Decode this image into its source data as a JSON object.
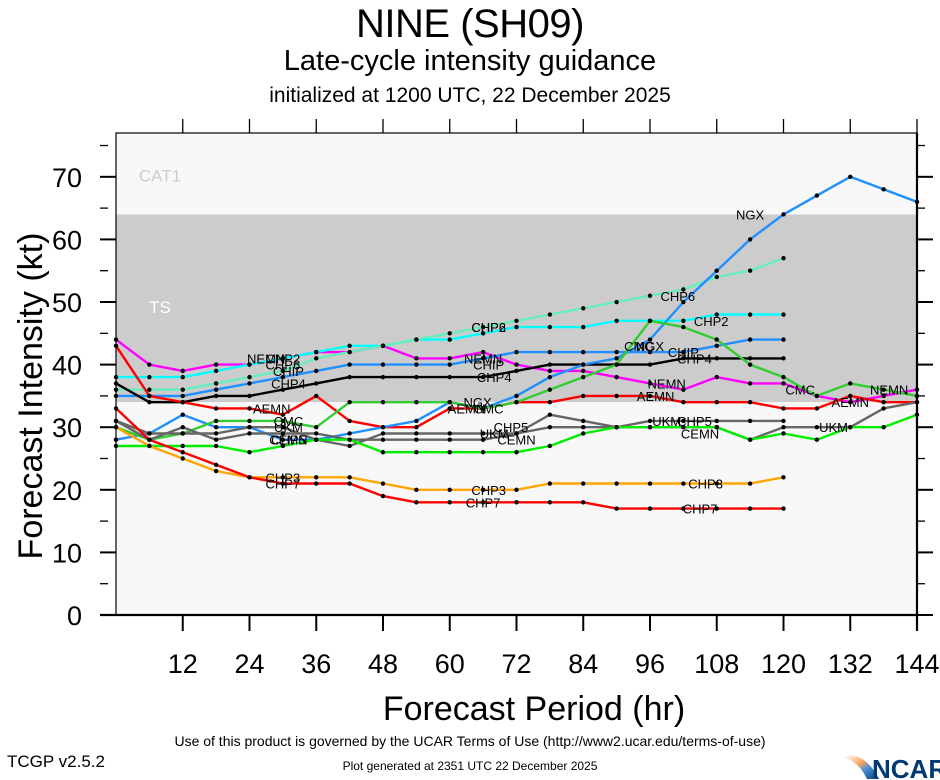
{
  "header": {
    "title": "NINE (SH09)",
    "subtitle": "Late-cycle intensity guidance",
    "initialized": "initialized at 1200 UTC, 22 December 2025"
  },
  "footer": {
    "terms": "Use of this product is governed by the UCAR Terms of Use (http://www2.ucar.edu/terms-of-use)",
    "version": "TCGP v2.5.2",
    "generated": "Plot generated at 2351 UTC   22 December 2025",
    "logo_text": "NCAR"
  },
  "chart_data": {
    "type": "line",
    "title": "NINE (SH09)",
    "xlabel": "Forecast Period (hr)",
    "ylabel": "Forecast Intensity (kt)",
    "xlim": [
      0,
      144
    ],
    "ylim": [
      0,
      77
    ],
    "xticks": [
      12,
      24,
      36,
      48,
      60,
      72,
      84,
      96,
      108,
      120,
      132,
      144
    ],
    "yticks": [
      0,
      10,
      20,
      30,
      40,
      50,
      60,
      70
    ],
    "grid": false,
    "bands": [
      {
        "label": "TS",
        "from": 34,
        "to": 64,
        "color": "#cccccc"
      },
      {
        "label": "CAT1",
        "from": 64,
        "to": 77,
        "color": "#f8f8f8"
      },
      {
        "label": "",
        "from": 0,
        "to": 34,
        "color": "#f8f8f8"
      }
    ],
    "series": [
      {
        "name": "NEMN",
        "color": "#ff00ff",
        "x": [
          0,
          6,
          12,
          18,
          24,
          30,
          36,
          42,
          48,
          54,
          60,
          66,
          72,
          78,
          84,
          90,
          96,
          102,
          108,
          114,
          120,
          126,
          132,
          138,
          144
        ],
        "values": [
          44,
          40,
          39,
          40,
          40,
          41,
          42,
          42,
          43,
          41,
          41,
          42,
          40,
          39,
          39,
          38,
          37,
          36,
          38,
          37,
          37,
          35,
          34,
          35,
          36
        ],
        "labels": [
          {
            "x": 27,
            "y": 41
          },
          {
            "x": 66,
            "y": 41
          },
          {
            "x": 99,
            "y": 37
          },
          {
            "x": 139,
            "y": 36
          }
        ]
      },
      {
        "name": "CHP2",
        "color": "#00ffff",
        "x": [
          0,
          6,
          12,
          18,
          24,
          30,
          36,
          42,
          48,
          54,
          60,
          66,
          72,
          78,
          84,
          90,
          96,
          102,
          108,
          114,
          120
        ],
        "values": [
          38,
          38,
          38,
          39,
          40,
          41,
          42,
          43,
          43,
          44,
          44,
          45,
          46,
          46,
          46,
          47,
          47,
          47,
          48,
          48,
          48
        ],
        "labels": [
          {
            "x": 30,
            "y": 41
          },
          {
            "x": 67,
            "y": 46
          },
          {
            "x": 107,
            "y": 47
          }
        ]
      },
      {
        "name": "CHP6",
        "color": "#66eebb",
        "x": [
          0,
          6,
          12,
          18,
          24,
          30,
          36,
          42,
          48,
          54,
          60,
          66,
          72,
          78,
          84,
          90,
          96,
          102,
          108,
          114,
          120
        ],
        "values": [
          36,
          36,
          36,
          37,
          38,
          39,
          41,
          42,
          43,
          44,
          45,
          46,
          47,
          48,
          49,
          50,
          51,
          52,
          54,
          55,
          57
        ],
        "labels": [
          {
            "x": 30,
            "y": 40
          },
          {
            "x": 67,
            "y": 46
          },
          {
            "x": 101,
            "y": 51
          }
        ]
      },
      {
        "name": "CHIP",
        "color": "#1e90ff",
        "x": [
          0,
          6,
          12,
          18,
          24,
          30,
          36,
          42,
          48,
          54,
          60,
          66,
          72,
          78,
          84,
          90,
          96,
          102,
          108,
          114,
          120
        ],
        "values": [
          35,
          35,
          35,
          36,
          37,
          38,
          39,
          40,
          40,
          40,
          40,
          41,
          42,
          42,
          42,
          42,
          42,
          42,
          43,
          44,
          44
        ],
        "labels": [
          {
            "x": 31,
            "y": 39
          },
          {
            "x": 67,
            "y": 40
          },
          {
            "x": 102,
            "y": 42
          }
        ]
      },
      {
        "name": "CHP4",
        "color": "#000000",
        "x": [
          0,
          6,
          12,
          18,
          24,
          30,
          36,
          42,
          48,
          54,
          60,
          66,
          72,
          78,
          84,
          90,
          96,
          102,
          108,
          114,
          120
        ],
        "values": [
          37,
          34,
          34,
          35,
          35,
          36,
          37,
          38,
          38,
          38,
          38,
          38,
          39,
          40,
          40,
          40,
          40,
          41,
          41,
          41,
          41
        ],
        "labels": [
          {
            "x": 31,
            "y": 37
          },
          {
            "x": 68,
            "y": 38
          },
          {
            "x": 104,
            "y": 41
          }
        ]
      },
      {
        "name": "AEMN",
        "color": "#ff0000",
        "x": [
          0,
          6,
          12,
          18,
          24,
          30,
          36,
          42,
          48,
          54,
          60,
          66,
          72,
          78,
          84,
          90,
          96,
          102,
          108,
          114,
          120,
          126,
          132,
          138,
          144
        ],
        "values": [
          43,
          35,
          34,
          33,
          33,
          32,
          35,
          31,
          30,
          30,
          33,
          33,
          34,
          34,
          35,
          35,
          35,
          34,
          34,
          34,
          33,
          33,
          35,
          34,
          34
        ],
        "labels": [
          {
            "x": 28,
            "y": 33
          },
          {
            "x": 63,
            "y": 33
          },
          {
            "x": 97,
            "y": 35
          },
          {
            "x": 132,
            "y": 34
          }
        ]
      },
      {
        "name": "NGX",
        "color": "#1e90ff",
        "x": [
          0,
          6,
          12,
          18,
          24,
          30,
          36,
          42,
          48,
          54,
          60,
          66,
          72,
          78,
          84,
          90,
          96,
          102,
          108,
          114,
          120,
          126,
          132,
          138,
          144
        ],
        "values": [
          28,
          29,
          32,
          30,
          30,
          28,
          28,
          29,
          30,
          31,
          34,
          33,
          35,
          38,
          40,
          41,
          44,
          50,
          55,
          60,
          64,
          67,
          70,
          68,
          66
        ],
        "labels": [
          {
            "x": 65,
            "y": 34
          },
          {
            "x": 96,
            "y": 43
          },
          {
            "x": 114,
            "y": 64
          }
        ]
      },
      {
        "name": "CMC",
        "color": "#33cc33",
        "x": [
          0,
          6,
          12,
          18,
          24,
          30,
          36,
          42,
          48,
          54,
          60,
          66,
          72,
          78,
          84,
          90,
          96,
          102,
          108,
          114,
          120,
          126,
          132,
          138,
          144
        ],
        "values": [
          30,
          28,
          29,
          31,
          31,
          31,
          30,
          34,
          34,
          34,
          34,
          33,
          34,
          36,
          38,
          40,
          47,
          46,
          44,
          40,
          38,
          35,
          37,
          36,
          35
        ],
        "labels": [
          {
            "x": 31,
            "y": 31
          },
          {
            "x": 67,
            "y": 33
          },
          {
            "x": 94,
            "y": 43
          },
          {
            "x": 123,
            "y": 36
          }
        ]
      },
      {
        "name": "UKM",
        "color": "#666666",
        "x": [
          0,
          6,
          12,
          18,
          24,
          30,
          36,
          42,
          48,
          54,
          60,
          66,
          72,
          78,
          84,
          90,
          96,
          102,
          108,
          114,
          120,
          126,
          132,
          138,
          144
        ],
        "values": [
          31,
          28,
          30,
          28,
          29,
          29,
          29,
          28,
          28,
          28,
          28,
          28,
          29,
          32,
          31,
          30,
          30,
          30,
          30,
          28,
          30,
          30,
          30,
          33,
          34
        ],
        "labels": [
          {
            "x": 31,
            "y": 30
          },
          {
            "x": 68,
            "y": 29
          },
          {
            "x": 99,
            "y": 31
          },
          {
            "x": 129,
            "y": 30
          }
        ]
      },
      {
        "name": "CHP5",
        "color": "#666666",
        "x": [
          0,
          6,
          12,
          18,
          24,
          30,
          36,
          42,
          48,
          54,
          60,
          66,
          72,
          78,
          84,
          90,
          96,
          102,
          108,
          114,
          120
        ],
        "values": [
          31,
          29,
          29,
          29,
          30,
          30,
          28,
          27,
          29,
          29,
          29,
          29,
          29,
          30,
          30,
          30,
          31,
          31,
          31,
          31,
          31
        ],
        "labels": [
          {
            "x": 31,
            "y": 28
          },
          {
            "x": 71,
            "y": 30
          },
          {
            "x": 104,
            "y": 31
          }
        ]
      },
      {
        "name": "CEMN",
        "color": "#00ee00",
        "x": [
          0,
          6,
          12,
          18,
          24,
          30,
          36,
          42,
          48,
          54,
          60,
          66,
          72,
          78,
          84,
          90,
          96,
          102,
          108,
          114,
          120,
          126,
          132,
          138,
          144
        ],
        "values": [
          27,
          27,
          27,
          27,
          26,
          27,
          28,
          28,
          26,
          26,
          26,
          26,
          26,
          27,
          29,
          30,
          30,
          30,
          30,
          28,
          29,
          28,
          30,
          30,
          32
        ],
        "labels": [
          {
            "x": 31,
            "y": 28
          },
          {
            "x": 72,
            "y": 28
          },
          {
            "x": 105,
            "y": 29
          }
        ]
      },
      {
        "name": "CHP3",
        "color": "#ffa500",
        "x": [
          0,
          6,
          12,
          18,
          24,
          30,
          36,
          42,
          48,
          54,
          60,
          66,
          72,
          78,
          84,
          90,
          96,
          102,
          108,
          114,
          120
        ],
        "values": [
          30,
          27,
          25,
          23,
          22,
          22,
          22,
          22,
          21,
          20,
          20,
          20,
          20,
          21,
          21,
          21,
          21,
          21,
          21,
          21,
          22
        ],
        "labels": [
          {
            "x": 30,
            "y": 22
          },
          {
            "x": 67,
            "y": 20
          },
          {
            "x": 106,
            "y": 21
          }
        ]
      },
      {
        "name": "CHP7",
        "color": "#ff0000",
        "x": [
          0,
          6,
          12,
          18,
          24,
          30,
          36,
          42,
          48,
          54,
          60,
          66,
          72,
          78,
          84,
          90,
          96,
          102,
          108,
          114,
          120
        ],
        "values": [
          33,
          28,
          26,
          24,
          22,
          21,
          21,
          21,
          19,
          18,
          18,
          18,
          18,
          18,
          18,
          17,
          17,
          17,
          17,
          17,
          17
        ],
        "labels": [
          {
            "x": 30,
            "y": 21
          },
          {
            "x": 66,
            "y": 18
          },
          {
            "x": 105,
            "y": 17
          }
        ]
      }
    ]
  }
}
